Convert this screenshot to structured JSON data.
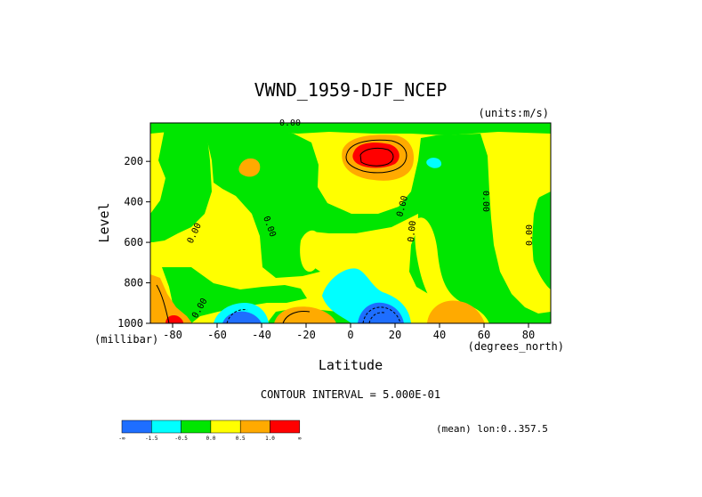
{
  "chart_data": {
    "type": "heatmap",
    "title": "VWND_1959-DJF_NCEP",
    "units_label": "(units:m/s)",
    "xlabel": "Latitude",
    "x_units": "(degrees_north)",
    "ylabel": "Level",
    "y_units": "(millibar)",
    "xlim": [
      -90,
      90
    ],
    "ylim": [
      1000,
      10
    ],
    "x_ticks": [
      "-80",
      "-60",
      "-40",
      "-20",
      "0",
      "20",
      "40",
      "60",
      "80"
    ],
    "y_ticks": [
      "200",
      "400",
      "600",
      "800",
      "1000"
    ],
    "contour_interval_label": "CONTOUR INTERVAL = 5.000E-01",
    "mean_label": "(mean) lon:0..357.5",
    "contour_labels": [
      "0.00",
      "0.00",
      "0.00",
      "0.00",
      "0.00",
      "0.00",
      "0.00",
      "0.00"
    ],
    "legend": {
      "colors": [
        "#1e6eff",
        "#00ffff",
        "#00e600",
        "#ffff00",
        "#ffaa00",
        "#ff0000"
      ],
      "tick_labels": [
        "-∞",
        "-1.5",
        "-0.5",
        "0.0",
        "0.5",
        "1.0",
        "∞"
      ]
    }
  }
}
